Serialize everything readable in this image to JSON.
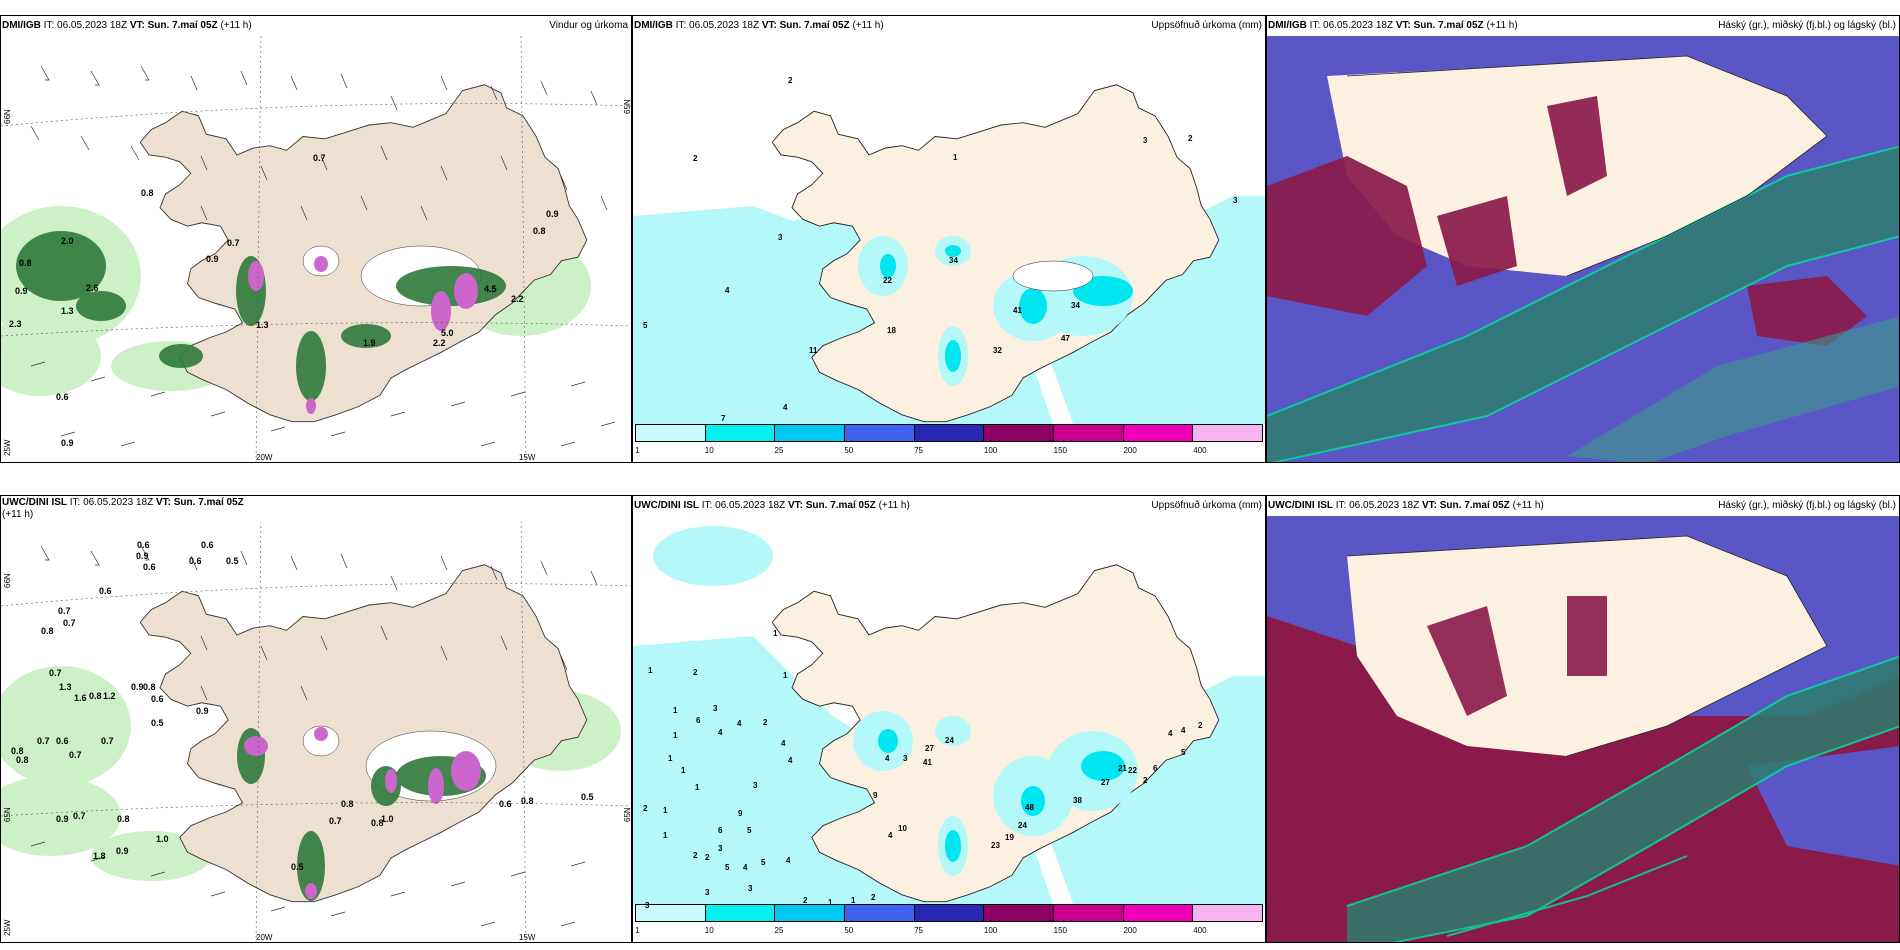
{
  "rows": [
    {
      "model": "DMI/IGB",
      "it_label": "IT:",
      "it_value": "06.05.2023 18Z",
      "vt_label": "VT:",
      "vt_value": "Sun. 7.maí 05Z",
      "lead": "(+11 h)"
    },
    {
      "model": "UWC/DINI ISL",
      "it_label": "IT:",
      "it_value": "06.05.2023 18Z",
      "vt_label": "VT:",
      "vt_value": "Sun. 7.maí 05Z",
      "lead": "(+11 h)"
    }
  ],
  "products": {
    "wind": "Vindur og úrkoma",
    "accum": "Uppsöfnuð úrkoma (mm)",
    "cloud": "Háský (gr.), miðský (fj.bl.) og lágský (bl.)"
  },
  "axis": {
    "lat_66": "66N",
    "lat_65": "65N",
    "lon_25": "25W",
    "lon_20": "20W",
    "lon_15": "15W"
  },
  "legend": {
    "labels": [
      "1",
      "10",
      "25",
      "50",
      "75",
      "100",
      "150",
      "200",
      "400"
    ],
    "colors": [
      "#c8fafc",
      "#00f0f0",
      "#00c8f0",
      "#3c64f0",
      "#2828b4",
      "#8c0064",
      "#c8008c",
      "#f000b4",
      "#f5b4f0"
    ]
  },
  "wind_values_top": [
    "0.7",
    "0.8",
    "0.7",
    "0.9",
    "0.8",
    "0.9",
    "2.6",
    "0.9",
    "2.3",
    "1.3",
    "0.8",
    "2.0",
    "4.5",
    "2.2",
    "5.0",
    "2.2",
    "1.3",
    "1.9",
    "0.6",
    "0.9"
  ],
  "accum_values_top": [
    "2",
    "1",
    "3",
    "2",
    "3",
    "2",
    "3",
    "4",
    "22",
    "34",
    "18",
    "41",
    "32",
    "34",
    "47",
    "11",
    "4",
    "7",
    "5"
  ],
  "wind_values_bottom": [
    "0.6",
    "0.6",
    "0.5",
    "0.6",
    "0.9",
    "0.6",
    "0.6",
    "0.7",
    "0.7",
    "0.8",
    "0.7",
    "1.3",
    "1.6",
    "0.8",
    "1.2",
    "0.9",
    "0.8",
    "0.6",
    "0.5",
    "0.9",
    "0.8",
    "0.7",
    "0.6",
    "0.7",
    "0.8",
    "0.7",
    "0.8",
    "0.5",
    "0.9",
    "0.7",
    "0.8",
    "1.0",
    "0.7",
    "0.8",
    "0.6",
    "0.8",
    "1.0",
    "0.9",
    "1.8",
    "0.5"
  ],
  "accum_values_bottom": [
    "1",
    "2",
    "1",
    "1",
    "4",
    "1",
    "1",
    "3",
    "6",
    "4",
    "2",
    "1",
    "4",
    "1",
    "1",
    "1",
    "2",
    "1",
    "4",
    "3",
    "27",
    "41",
    "24",
    "9",
    "10",
    "48",
    "24",
    "23",
    "19",
    "21",
    "27",
    "22",
    "38",
    "6",
    "5",
    "4",
    "2",
    "4",
    "2",
    "3",
    "9",
    "6",
    "3",
    "5",
    "5",
    "4",
    "5",
    "4",
    "3",
    "3",
    "3",
    "2",
    "1",
    "1",
    "2",
    "4",
    "4",
    "2",
    "2"
  ]
}
